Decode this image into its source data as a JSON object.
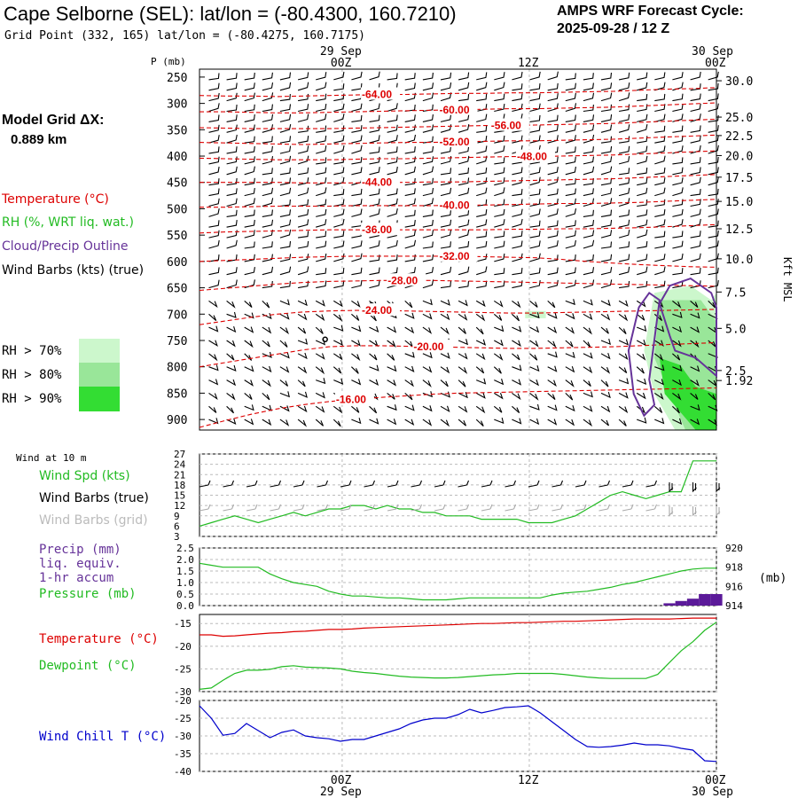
{
  "header": {
    "station_title": "Cape Selborne (SEL):  lat/lon = (-80.4300, 160.7210)",
    "grid_point": "Grid Point (332, 165) lat/lon = (-80.4275, 160.7175)",
    "cycle_title": "AMPS WRF Forecast Cycle:",
    "cycle_value": "2025-09-28 / 12  Z"
  },
  "model_grid": {
    "label": "Model Grid ΔX:",
    "value": "0.889 km"
  },
  "legend": {
    "temperature": "Temperature (°C)",
    "rh": "RH (%, WRT liq. wat.)",
    "cloud": "Cloud/Precip Outline",
    "wind": "Wind Barbs (kts) (true)",
    "rh_bins": [
      {
        "label": "RH > 70%",
        "color": "#ccf7cc"
      },
      {
        "label": "RH > 80%",
        "color": "#99e699"
      },
      {
        "label": "RH > 90%",
        "color": "#33dd33"
      }
    ]
  },
  "colors": {
    "temperature": "#dd0000",
    "rh": "#22bb22",
    "cloud": "#663399",
    "precip": "#5b1a99",
    "windchill": "#0000cc",
    "grid": "#bbbbbb"
  },
  "time_axis": {
    "top_date_start": "29 Sep",
    "top_date_end": "30 Sep",
    "bottom_date_start": "29 Sep",
    "bottom_date_end": "30 Sep",
    "ticks": [
      "00Z",
      "12Z",
      "00Z"
    ]
  },
  "chart_data": [
    {
      "id": "sounding",
      "type": "contour",
      "ylabel": "P (mb)",
      "pressure_ticks": [
        "250",
        "300",
        "350",
        "400",
        "450",
        "500",
        "550",
        "600",
        "650",
        "700",
        "750",
        "800",
        "850",
        "900"
      ],
      "pressure_range": [
        235,
        920
      ],
      "height_axis_label": "Kft MSL",
      "height_ticks": [
        {
          "label": "30.0",
          "p": 257
        },
        {
          "label": "25.0",
          "p": 326
        },
        {
          "label": "22.5",
          "p": 361
        },
        {
          "label": "20.0",
          "p": 399
        },
        {
          "label": "17.5",
          "p": 440
        },
        {
          "label": "15.0",
          "p": 486
        },
        {
          "label": "12.5",
          "p": 538
        },
        {
          "label": "10.0",
          "p": 595
        },
        {
          "label": "7.5",
          "p": 658
        },
        {
          "label": "5.0",
          "p": 727
        },
        {
          "label": "2.5",
          "p": 807
        },
        {
          "label": "1.92",
          "p": 826
        }
      ],
      "temperature_contours": [
        {
          "label": "-64.00",
          "levels": [
            285,
            286,
            286,
            287,
            286,
            285,
            284,
            283,
            283,
            282,
            281,
            281,
            280,
            280,
            279,
            278,
            277,
            275,
            273,
            272,
            270
          ]
        },
        {
          "label": "-60.00",
          "levels": [
            316,
            316,
            317,
            318,
            318,
            317,
            316,
            315,
            314,
            313,
            312,
            311,
            310,
            310,
            309,
            308,
            307,
            305,
            303,
            301,
            299
          ]
        },
        {
          "label": "-56.00",
          "levels": [
            346,
            347,
            348,
            348,
            348,
            348,
            347,
            346,
            345,
            344,
            343,
            342,
            342,
            341,
            340,
            339,
            338,
            336,
            334,
            332,
            330
          ]
        },
        {
          "label": "-52.00",
          "levels": [
            374,
            375,
            376,
            377,
            378,
            377,
            376,
            375,
            374,
            374,
            373,
            372,
            371,
            371,
            370,
            369,
            368,
            366,
            364,
            362,
            360
          ]
        },
        {
          "label": "-48.00",
          "levels": [
            404,
            405,
            406,
            407,
            407,
            407,
            406,
            405,
            405,
            404,
            403,
            402,
            401,
            401,
            400,
            399,
            398,
            396,
            394,
            392,
            390
          ]
        },
        {
          "label": "-44.00",
          "levels": [
            450,
            450,
            450,
            450,
            451,
            451,
            451,
            450,
            450,
            449,
            449,
            448,
            447,
            446,
            445,
            444,
            443,
            441,
            439,
            437,
            435
          ]
        },
        {
          "label": "-40.00",
          "levels": [
            497,
            497,
            496,
            495,
            495,
            495,
            494,
            494,
            494,
            494,
            493,
            493,
            492,
            491,
            490,
            490,
            489,
            488,
            486,
            484,
            482
          ]
        },
        {
          "label": "-36.00",
          "levels": [
            546,
            544,
            543,
            542,
            541,
            540,
            540,
            540,
            540,
            540,
            540,
            540,
            539,
            539,
            538,
            538,
            537,
            536,
            534,
            532,
            530
          ]
        },
        {
          "label": "-32.00",
          "levels": [
            600,
            598,
            596,
            594,
            592,
            591,
            590,
            590,
            590,
            590,
            590,
            591,
            592,
            593,
            596,
            600,
            603,
            606,
            608,
            610,
            611
          ]
        },
        {
          "label": "-28.00",
          "levels": [
            655,
            651,
            647,
            643,
            640,
            638,
            637,
            636,
            636,
            636,
            637,
            638,
            639,
            640,
            641,
            642,
            643,
            644,
            645,
            646,
            647
          ]
        },
        {
          "label": "-24.00",
          "levels": [
            720,
            713,
            706,
            700,
            696,
            694,
            693,
            693,
            694,
            695,
            696,
            697,
            698,
            698,
            697,
            696,
            695,
            694,
            693,
            692,
            691
          ]
        },
        {
          "label": "-20.00",
          "levels": [
            800,
            792,
            784,
            776,
            768,
            762,
            760,
            760,
            761,
            762,
            763,
            764,
            765,
            765,
            764,
            763,
            762,
            760,
            758,
            756,
            754
          ]
        },
        {
          "label": "-16.00",
          "levels": [
            915,
            902,
            890,
            880,
            872,
            866,
            862,
            858,
            855,
            852,
            850,
            849,
            848,
            847,
            846,
            845,
            844,
            843,
            842,
            841,
            840
          ]
        }
      ],
      "rh_note": "RH > 70% / 80% / 90% shading late in period near surface"
    },
    {
      "id": "wind10m",
      "type": "line",
      "title": "Wind at 10 m",
      "legend": [
        "Wind Spd (kts)",
        "Wind Barbs (true)",
        "Wind Barbs (grid)"
      ],
      "y_ticks": [
        "27",
        "24",
        "21",
        "18",
        "15",
        "12",
        "9",
        "6",
        "3"
      ],
      "ylim": [
        3,
        27
      ],
      "speed": [
        6,
        7,
        8,
        9,
        8,
        7,
        8,
        9,
        10,
        9,
        10,
        11,
        11,
        12,
        12,
        11,
        12,
        11,
        11,
        10,
        10,
        9,
        9,
        9,
        8,
        8,
        8,
        8,
        7,
        7,
        7,
        8,
        9,
        11,
        13,
        15,
        16,
        15,
        14,
        15,
        16,
        16,
        25,
        25,
        25
      ],
      "barb_direction_deg": [
        250,
        250,
        255,
        255,
        255,
        260,
        260,
        260,
        260,
        265,
        265,
        265,
        265,
        265,
        270,
        270,
        270,
        270,
        270,
        270,
        270,
        270,
        270,
        270,
        270,
        270,
        270,
        270,
        270,
        270,
        270,
        270,
        270,
        270,
        270,
        275,
        275,
        275,
        275,
        275,
        275,
        280,
        280,
        280,
        280
      ]
    },
    {
      "id": "precip_pressure",
      "type": "line",
      "legend": [
        "Precip (mm)",
        "liq. equiv.",
        "1-hr accum",
        "Pressure (mb)"
      ],
      "y_ticks": [
        "2.5",
        "2.0",
        "1.5",
        "1.0",
        "0.5",
        "0.0"
      ],
      "ylim": [
        0,
        2.5
      ],
      "y2_ticks": [
        "920",
        "918",
        "916",
        "914"
      ],
      "y2lim": [
        914,
        920
      ],
      "y2label": "(mb)",
      "pressure": [
        918.4,
        918.2,
        918.0,
        918.0,
        918.0,
        918.0,
        917.3,
        916.8,
        916.4,
        916.2,
        916.0,
        915.5,
        915.2,
        915.0,
        915.0,
        914.9,
        914.8,
        914.8,
        914.7,
        914.6,
        914.6,
        914.6,
        914.7,
        914.8,
        914.8,
        914.8,
        914.8,
        914.8,
        914.8,
        914.8,
        915.1,
        915.3,
        915.4,
        915.5,
        915.7,
        915.9,
        916.2,
        916.4,
        916.7,
        917.0,
        917.3,
        917.6,
        917.8,
        917.9,
        917.9
      ],
      "precip_bars": [
        0,
        0,
        0,
        0,
        0,
        0,
        0,
        0,
        0,
        0,
        0,
        0,
        0,
        0,
        0,
        0,
        0,
        0,
        0,
        0,
        0,
        0,
        0,
        0,
        0,
        0,
        0,
        0,
        0,
        0,
        0,
        0,
        0,
        0,
        0,
        0,
        0,
        0,
        0,
        0,
        0.1,
        0.2,
        0.3,
        0.5,
        0.5
      ]
    },
    {
      "id": "temp_dew",
      "type": "line",
      "legend": [
        "Temperature (°C)",
        "Dewpoint (°C)"
      ],
      "y_ticks": [
        "-15",
        "-20",
        "-25",
        "-30"
      ],
      "ylim": [
        -30,
        -13
      ],
      "temperature": [
        -17.5,
        -17.5,
        -17.8,
        -17.7,
        -17.5,
        -17.3,
        -17.1,
        -17.0,
        -16.8,
        -16.7,
        -16.5,
        -16.3,
        -16.3,
        -16.2,
        -16.0,
        -15.9,
        -15.8,
        -15.7,
        -15.6,
        -15.5,
        -15.4,
        -15.3,
        -15.2,
        -15.1,
        -15.0,
        -15.0,
        -14.9,
        -14.8,
        -14.8,
        -14.7,
        -14.6,
        -14.5,
        -14.5,
        -14.4,
        -14.3,
        -14.2,
        -14.1,
        -14.0,
        -14.0,
        -14.0,
        -14.0,
        -13.9,
        -13.8,
        -13.8,
        -13.8
      ],
      "dewpoint": [
        -29.5,
        -29.2,
        -27.5,
        -26.0,
        -25.3,
        -25.3,
        -25.1,
        -24.5,
        -24.3,
        -24.6,
        -24.7,
        -24.8,
        -25.0,
        -25.5,
        -25.8,
        -26.0,
        -26.3,
        -26.6,
        -26.8,
        -26.9,
        -27.0,
        -27.0,
        -26.9,
        -26.7,
        -26.5,
        -26.3,
        -26.2,
        -26.0,
        -26.0,
        -26.0,
        -26.0,
        -26.2,
        -26.5,
        -26.8,
        -27.0,
        -27.1,
        -27.1,
        -27.1,
        -27.1,
        -26.2,
        -23.6,
        -21.0,
        -19.0,
        -16.5,
        -14.7
      ]
    },
    {
      "id": "windchill",
      "type": "line",
      "legend": [
        "Wind Chill T (°C)"
      ],
      "y_ticks": [
        "-20",
        "-25",
        "-30",
        "-35",
        "-40"
      ],
      "ylim": [
        -40,
        -20
      ],
      "windchill": [
        -21.5,
        -25.0,
        -29.8,
        -29.3,
        -26.5,
        -28.5,
        -30.5,
        -29.0,
        -28.3,
        -30.0,
        -30.5,
        -30.8,
        -31.5,
        -31.0,
        -31.0,
        -30.0,
        -29.0,
        -28.0,
        -26.5,
        -25.5,
        -25.0,
        -25.0,
        -24.0,
        -22.5,
        -23.5,
        -22.8,
        -22.0,
        -21.8,
        -21.5,
        -23.5,
        -26.0,
        -28.5,
        -31.0,
        -33.0,
        -33.2,
        -33.0,
        -32.6,
        -32.0,
        -32.5,
        -32.5,
        -32.8,
        -33.5,
        -34.0,
        -37.0,
        -37.2
      ]
    }
  ]
}
